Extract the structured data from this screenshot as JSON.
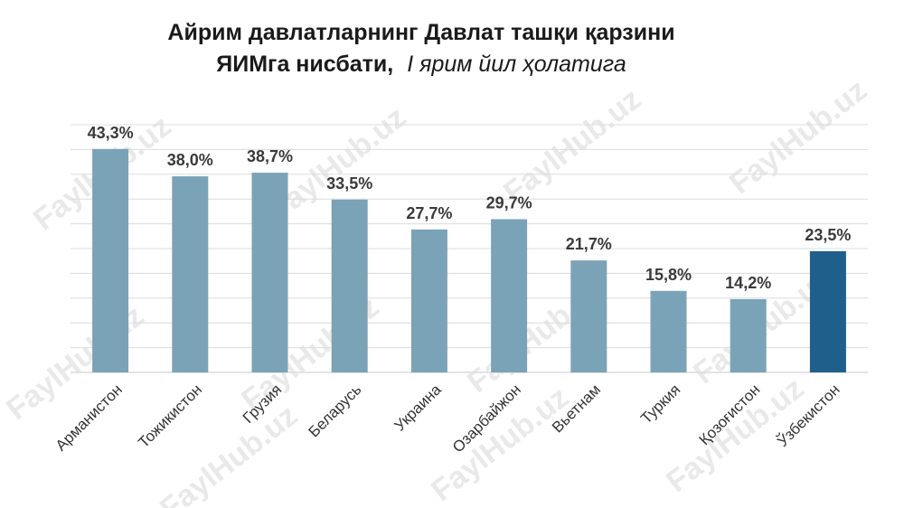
{
  "chart_data": {
    "type": "bar",
    "title_line1": "Айрим давлатларнинг Давлат ташқи қарзини",
    "title_line2_bold": "ЯИМга нисбати,",
    "title_line2_italic": "I ярим йил ҳолатига",
    "categories": [
      "Арманистон",
      "Тожикистон",
      "Грузия",
      "Беларусь",
      "Украина",
      "Озарбайжон",
      "Вьетнам",
      "Туркия",
      "Қозоғистон",
      "Ўзбекистон"
    ],
    "values": [
      43.3,
      38.0,
      38.7,
      33.5,
      27.7,
      29.7,
      21.7,
      15.8,
      14.2,
      23.5
    ],
    "value_labels": [
      "43,3%",
      "38,0%",
      "38,7%",
      "33,5%",
      "27,7%",
      "29,7%",
      "21,7%",
      "15,8%",
      "14,2%",
      "23,5%"
    ],
    "ylim": [
      0,
      48
    ],
    "grid": true,
    "bar_color": "#7aa3b8",
    "highlight_color": "#1f5f8b",
    "highlight_index": 9,
    "gridline_color": "#dcdcdc"
  },
  "watermark_text": "FaylHub.uz"
}
